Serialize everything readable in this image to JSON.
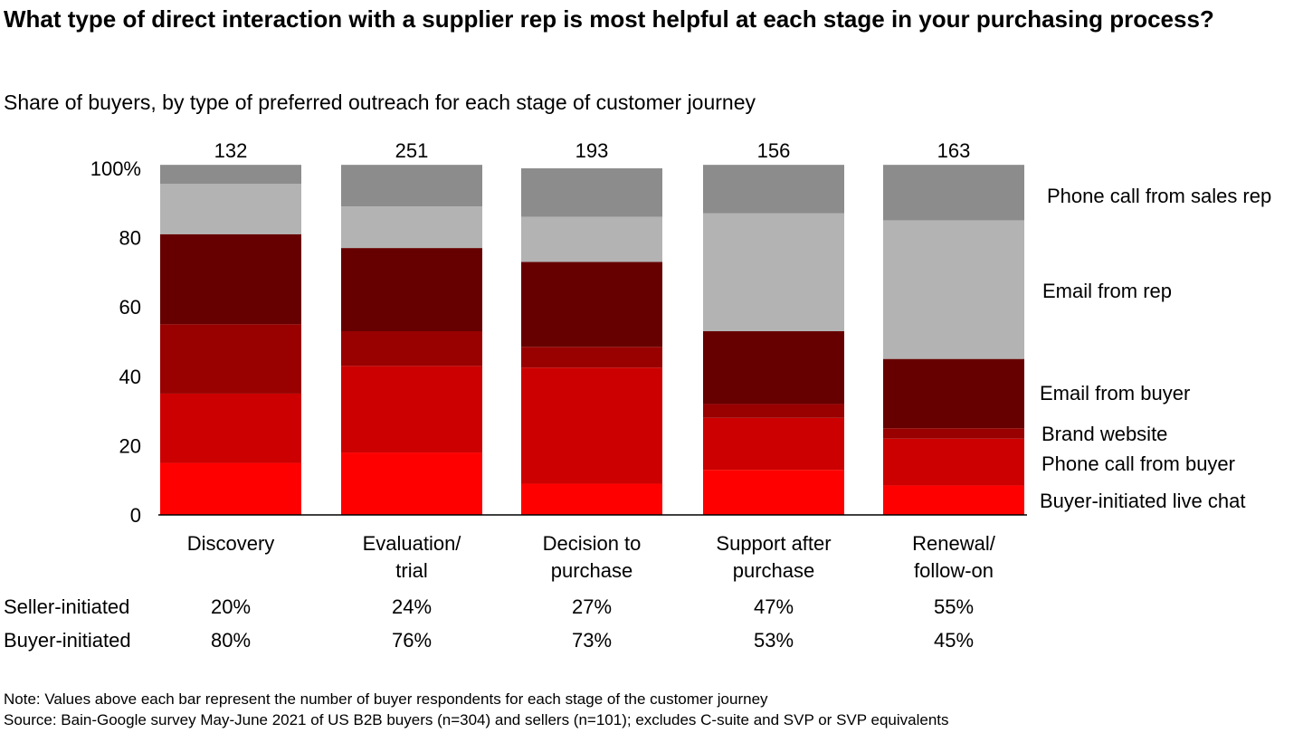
{
  "header": {
    "title": "What type of direct interaction with a supplier rep is most helpful at each stage in your purchasing process?",
    "subtitle": "Share of buyers, by type of preferred outreach for each stage of customer journey"
  },
  "footer": {
    "note": "Note: Values above each bar represent the number of buyer respondents for each stage of the customer journey",
    "source": "Source: Bain-Google survey May-June 2021 of US B2B buyers (n=304) and sellers (n=101); excludes C-suite and SVP or SVP equivalents"
  },
  "chart_data": {
    "type": "bar",
    "stacked": true,
    "categories": [
      [
        "Discovery"
      ],
      [
        "Evaluation/",
        "trial"
      ],
      [
        "Decision to",
        "purchase"
      ],
      [
        "Support after",
        "purchase"
      ],
      [
        "Renewal/",
        "follow-on"
      ]
    ],
    "respondents": [
      "132",
      "251",
      "193",
      "156",
      "163"
    ],
    "ylim": [
      0,
      100
    ],
    "yticks": [
      0,
      20,
      40,
      60,
      80,
      100
    ],
    "ytick_labels": [
      "0",
      "20",
      "40",
      "60",
      "80",
      "100%"
    ],
    "grid": false,
    "legend_position": "right",
    "series": [
      {
        "name": "Buyer-initiated live chat",
        "color": "#ff0000",
        "values": [
          15,
          18,
          9,
          13,
          8.5
        ]
      },
      {
        "name": "Phone call from buyer",
        "color": "#cc0000",
        "values": [
          20,
          25,
          33.5,
          15,
          13.5
        ]
      },
      {
        "name": "Brand website",
        "color": "#990000",
        "values": [
          20,
          10,
          6,
          4,
          3
        ]
      },
      {
        "name": "Email from buyer",
        "color": "#660000",
        "values": [
          26,
          24,
          24.5,
          21,
          20
        ]
      },
      {
        "name": "Email from rep",
        "color": "#b3b3b3",
        "values": [
          14.5,
          12,
          13,
          34,
          40
        ]
      },
      {
        "name": "Phone call from sales rep",
        "color": "#8c8c8c",
        "values": [
          5.5,
          12,
          14,
          14,
          16
        ]
      }
    ],
    "summary_rows": [
      {
        "label": "Seller-initiated",
        "values": [
          "20%",
          "24%",
          "27%",
          "47%",
          "55%"
        ]
      },
      {
        "label": "Buyer-initiated",
        "values": [
          "80%",
          "76%",
          "73%",
          "53%",
          "45%"
        ]
      }
    ]
  }
}
